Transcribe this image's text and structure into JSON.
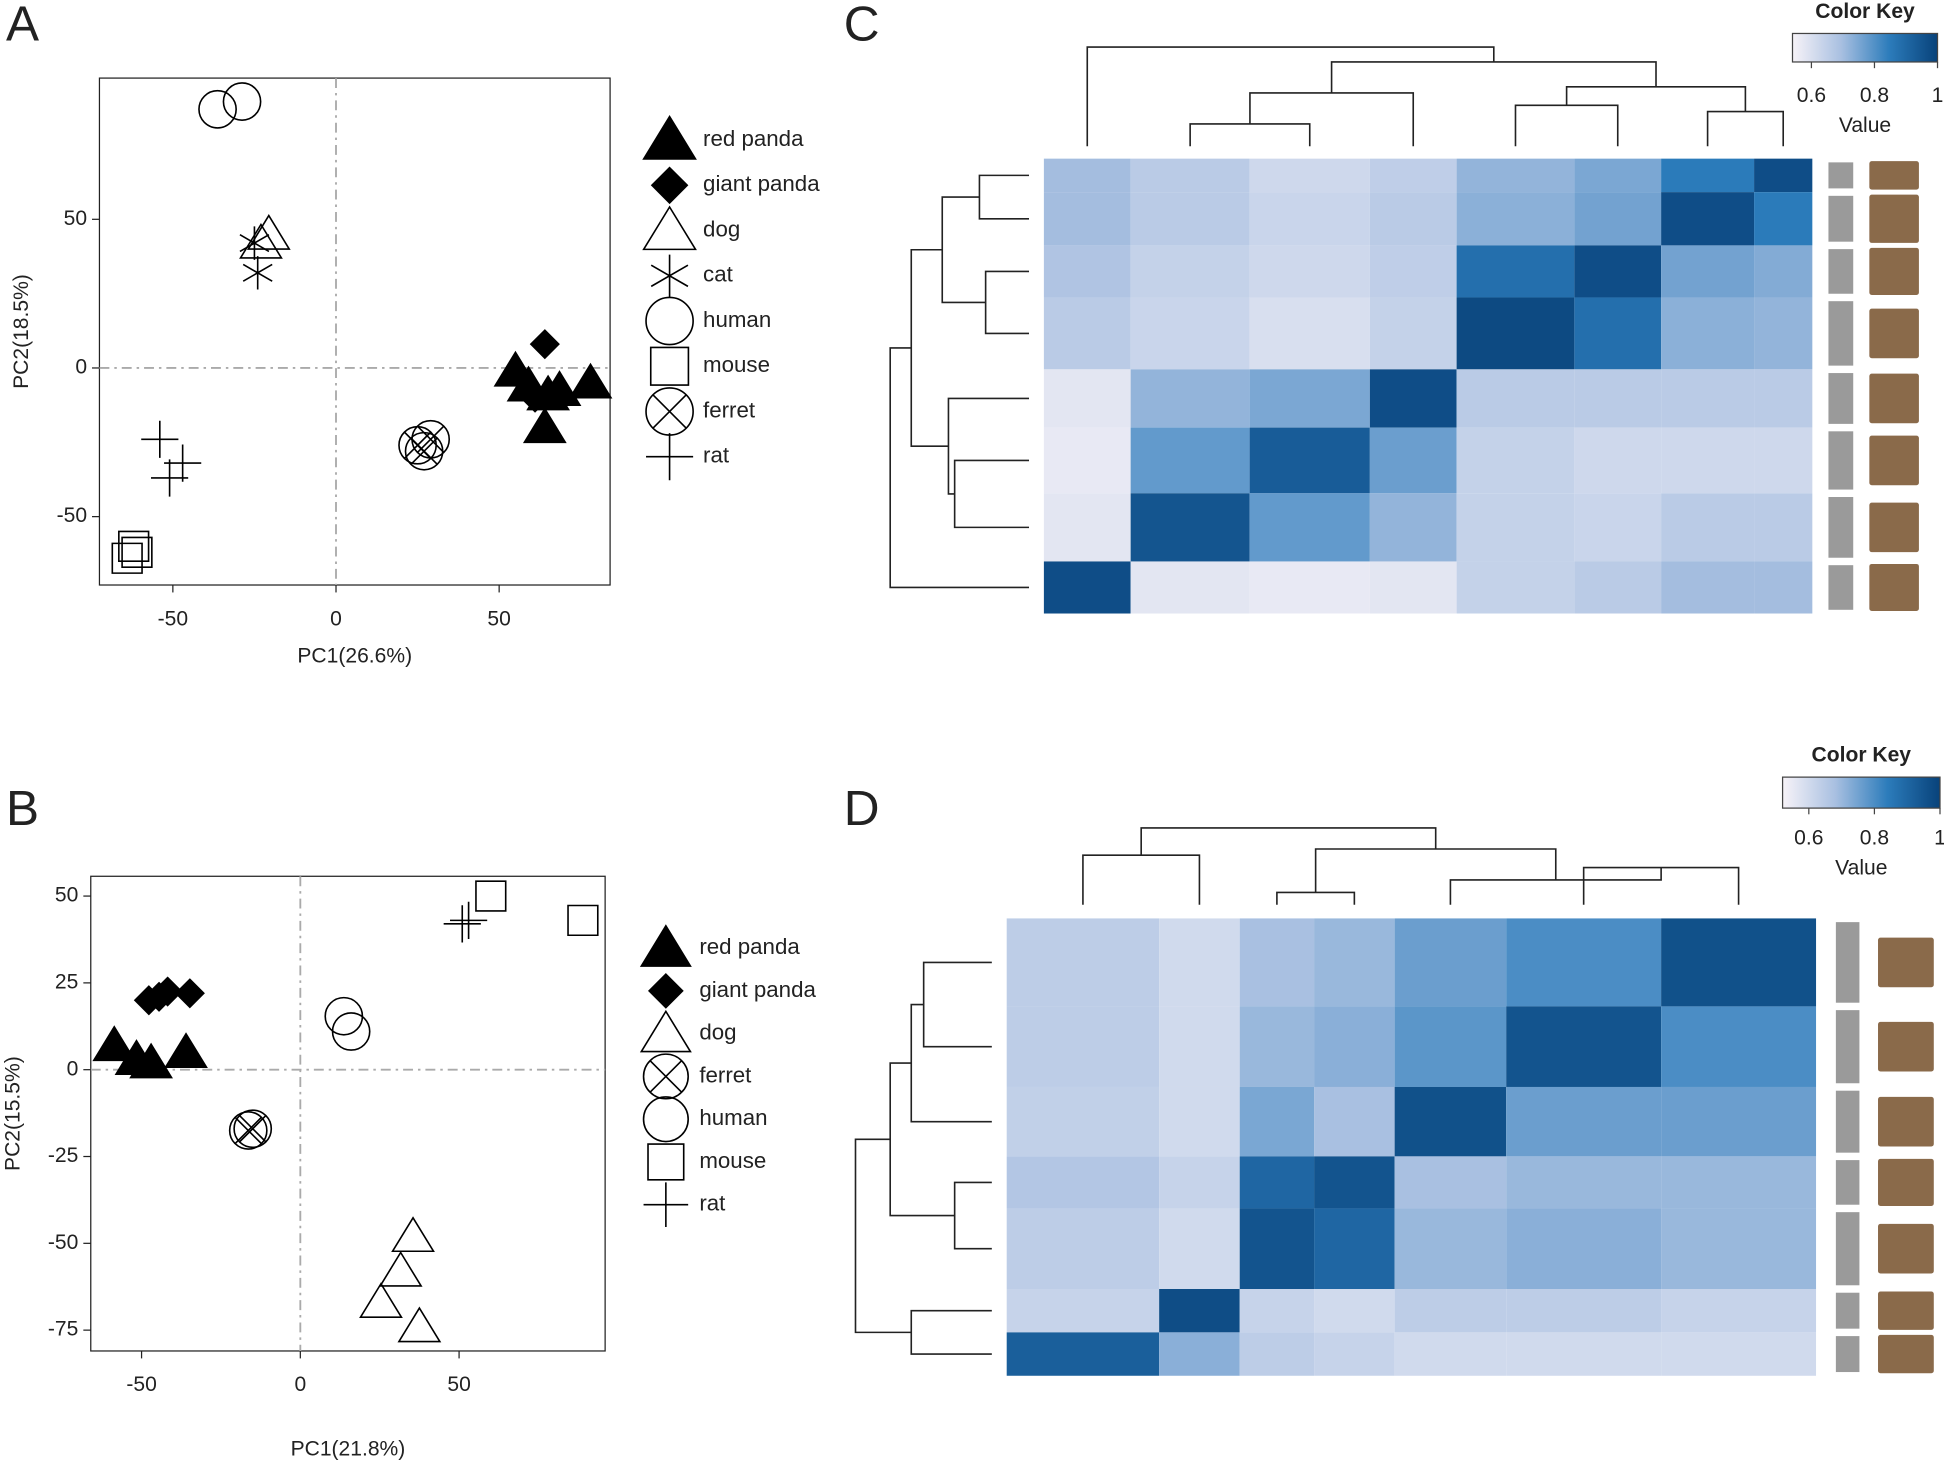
{
  "chart_data": [
    {
      "type": "scatter",
      "panel": "A",
      "x_label": "PC1(26.6%)",
      "y_label": "PC2(18.5%)",
      "xlim": [
        -72.5,
        84
      ],
      "ylim": [
        -73,
        97.5
      ],
      "xticks": [
        -50,
        0,
        50
      ],
      "yticks": [
        -50,
        0,
        50
      ],
      "zero_lines": true,
      "series": [
        {
          "name": "red panda",
          "marker": "triangle-filled",
          "color": "#000000",
          "x": [
            55,
            65,
            78,
            64,
            59,
            68.5
          ],
          "y": [
            -1,
            -9,
            -5,
            -20,
            -6,
            -7.5
          ]
        },
        {
          "name": "giant panda",
          "marker": "diamond",
          "color": "#000000",
          "x": [
            64,
            61
          ],
          "y": [
            8,
            -10
          ]
        },
        {
          "name": "dog",
          "marker": "triangle",
          "color": "#000000",
          "x": [
            -20.6,
            -23
          ],
          "y": [
            45,
            42
          ]
        },
        {
          "name": "cat",
          "marker": "asterisk",
          "color": "#000000",
          "x": [
            -25,
            -24
          ],
          "y": [
            42,
            32
          ]
        },
        {
          "name": "human",
          "marker": "circle",
          "color": "#000000",
          "x": [
            -36.3,
            -28.8
          ],
          "y": [
            87,
            89.6
          ]
        },
        {
          "name": "mouse",
          "marker": "square",
          "color": "#000000",
          "x": [
            -62,
            -61,
            -64
          ],
          "y": [
            -60,
            -62,
            -64
          ]
        },
        {
          "name": "ferret",
          "marker": "crossed-circle",
          "color": "#000000",
          "x": [
            25,
            29,
            27
          ],
          "y": [
            -26,
            -24,
            -28
          ]
        },
        {
          "name": "rat",
          "marker": "plus",
          "color": "#000000",
          "x": [
            -54,
            -47,
            -51
          ],
          "y": [
            -24,
            -32,
            -37
          ]
        }
      ]
    },
    {
      "type": "scatter",
      "panel": "B",
      "x_label": "PC1(21.8%)",
      "y_label": "PC2(15.5%)",
      "xlim": [
        -66,
        96
      ],
      "ylim": [
        -81,
        55.7
      ],
      "xticks": [
        -50,
        0,
        50
      ],
      "yticks": [
        -75,
        -50,
        -25,
        0,
        25,
        50
      ],
      "zero_lines": true,
      "series": [
        {
          "name": "red panda",
          "marker": "triangle-filled",
          "color": "#000000",
          "x": [
            -58.6,
            -51.6,
            -47,
            -36
          ],
          "y": [
            7,
            3,
            2,
            5
          ]
        },
        {
          "name": "giant panda",
          "marker": "diamond",
          "color": "#000000",
          "x": [
            -47.7,
            -41.8,
            -34.8,
            -44.5
          ],
          "y": [
            20,
            22.5,
            22,
            21
          ]
        },
        {
          "name": "dog",
          "marker": "triangle",
          "color": "#000000",
          "x": [
            35.5,
            31.6,
            25.4,
            37.5
          ],
          "y": [
            -48,
            -58,
            -67,
            -74
          ]
        },
        {
          "name": "ferret",
          "marker": "crossed-circle",
          "color": "#000000",
          "x": [
            -16.4,
            -15
          ],
          "y": [
            -17.5,
            -17
          ]
        },
        {
          "name": "human",
          "marker": "circle",
          "color": "#000000",
          "x": [
            13.7,
            16
          ],
          "y": [
            15.4,
            11
          ]
        },
        {
          "name": "mouse",
          "marker": "square",
          "color": "#000000",
          "x": [
            60,
            89
          ],
          "y": [
            50,
            43
          ]
        },
        {
          "name": "rat",
          "marker": "plus",
          "color": "#000000",
          "x": [
            51,
            53
          ],
          "y": [
            42,
            43
          ]
        }
      ]
    },
    {
      "type": "heatmap",
      "panel": "C",
      "colorbar_title": "Color Key",
      "colorbar_label": "Value",
      "clim": [
        0.54,
        1
      ],
      "colorbar_ticks": [
        0.6,
        0.8,
        1
      ],
      "colors": [
        "#f7f3f8",
        "#a9c0e1",
        "#2c7cbb",
        "#08427a"
      ],
      "values": [
        [
          0.7,
          0.66,
          0.62,
          0.65,
          0.72,
          0.75,
          0.85,
          0.97
        ],
        [
          0.7,
          0.66,
          0.63,
          0.66,
          0.73,
          0.76,
          0.97,
          0.85
        ],
        [
          0.68,
          0.64,
          0.62,
          0.65,
          0.88,
          0.97,
          0.76,
          0.74
        ],
        [
          0.66,
          0.63,
          0.6,
          0.64,
          0.98,
          0.88,
          0.73,
          0.72
        ],
        [
          0.58,
          0.72,
          0.75,
          0.97,
          0.66,
          0.66,
          0.66,
          0.66
        ],
        [
          0.57,
          0.78,
          0.93,
          0.77,
          0.64,
          0.62,
          0.62,
          0.62
        ],
        [
          0.58,
          0.95,
          0.78,
          0.72,
          0.64,
          0.63,
          0.66,
          0.66
        ],
        [
          0.97,
          0.58,
          0.57,
          0.58,
          0.64,
          0.66,
          0.7,
          0.7
        ]
      ]
    },
    {
      "type": "heatmap",
      "panel": "D",
      "colorbar_title": "Color Key",
      "colorbar_label": "Value",
      "clim": [
        0.52,
        1
      ],
      "colorbar_ticks": [
        0.6,
        0.8,
        1
      ],
      "colors": [
        "#f7f3f8",
        "#a9c0e1",
        "#2c7cbb",
        "#08427a"
      ],
      "values": [
        [
          0.64,
          0.6,
          0.68,
          0.7,
          0.76,
          0.8,
          0.96
        ],
        [
          0.64,
          0.6,
          0.7,
          0.72,
          0.78,
          0.95,
          0.8
        ],
        [
          0.63,
          0.6,
          0.74,
          0.68,
          0.96,
          0.76,
          0.76
        ],
        [
          0.66,
          0.62,
          0.9,
          0.95,
          0.68,
          0.7,
          0.7
        ],
        [
          0.64,
          0.6,
          0.95,
          0.9,
          0.7,
          0.72,
          0.7
        ],
        [
          0.62,
          0.97,
          0.62,
          0.6,
          0.64,
          0.64,
          0.62
        ],
        [
          0.92,
          0.72,
          0.64,
          0.62,
          0.6,
          0.6,
          0.6
        ]
      ]
    }
  ]
}
